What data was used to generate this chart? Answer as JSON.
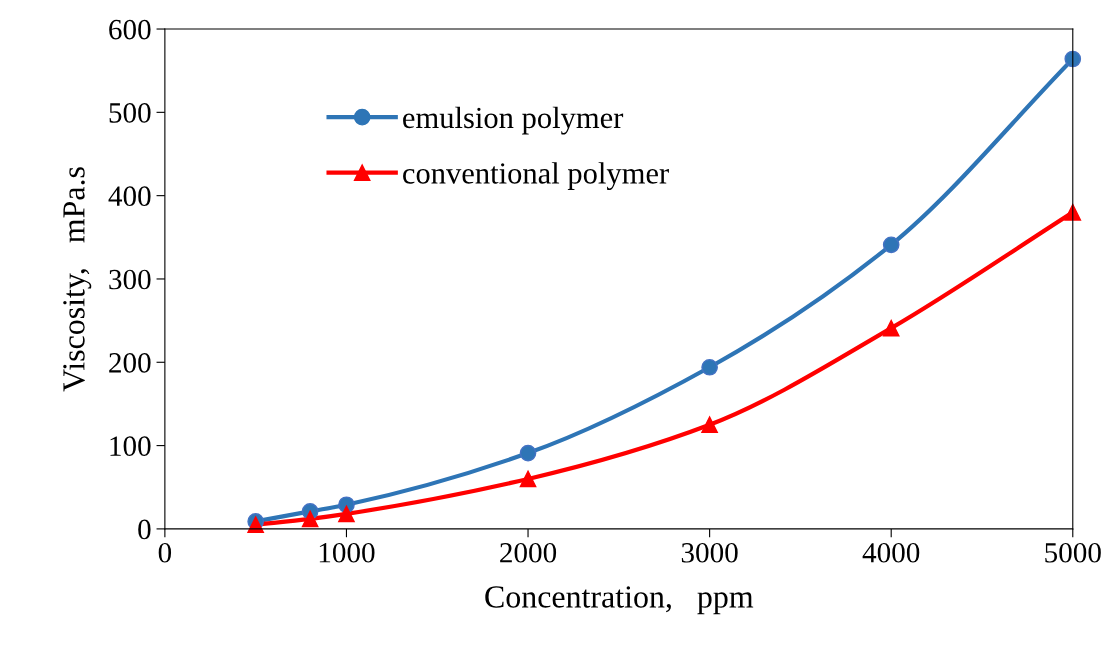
{
  "chart_data": {
    "type": "line",
    "xlabel": "Concentration,   ppm",
    "ylabel": "Viscosity,   mPa.s",
    "xlim": [
      0,
      5000
    ],
    "xticks": [
      0,
      1000,
      2000,
      3000,
      4000,
      5000
    ],
    "ylim": [
      0,
      600
    ],
    "yticks": [
      0,
      100,
      200,
      300,
      400,
      500,
      600
    ],
    "grid": false,
    "legend": "top left",
    "series": [
      {
        "name": "emulsion polymer",
        "color": "#2e75b6",
        "marker": "circle",
        "x": [
          500,
          800,
          1000,
          2000,
          3000,
          4000,
          5000
        ],
        "values": [
          9,
          21,
          29,
          91,
          194,
          341,
          564
        ]
      },
      {
        "name": "conventional polymer",
        "color": "#ff0000",
        "marker": "triangle",
        "x": [
          500,
          800,
          1000,
          2000,
          3000,
          4000,
          5000
        ],
        "values": [
          5,
          12,
          18,
          60,
          125,
          241,
          380
        ]
      }
    ]
  }
}
